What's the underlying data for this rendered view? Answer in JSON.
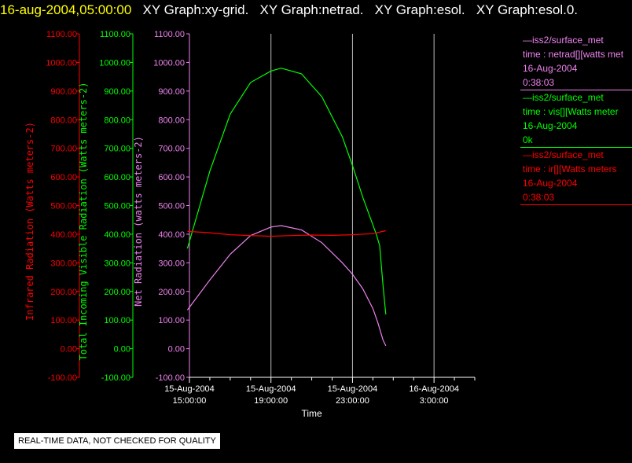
{
  "header": {
    "timestamp": "16-aug-2004,05:00:00",
    "graphs": [
      "XY Graph:xy-grid.",
      "XY Graph:netrad.",
      "XY Graph:esol.",
      "XY Graph:esol.0."
    ]
  },
  "legend": [
    {
      "source": "—iss2/surface_met",
      "field": "time : netrad[][watts met",
      "date": "16-Aug-2004",
      "time": "0:38:03",
      "color": "#ee82ee"
    },
    {
      "source": "—iss2/surface_met",
      "field": "time : vis[][Watts meter",
      "date": "16-Aug-2004",
      "time": "0k",
      "color": "#00ff00"
    },
    {
      "source": "—iss2/surface_met",
      "field": "time : ir[][Watts meters",
      "date": "16-Aug-2004",
      "time": "0:38:03",
      "color": "#ff0000"
    }
  ],
  "footer_note": "REAL-TIME DATA, NOT CHECKED FOR QUALITY",
  "chart_data": {
    "type": "line",
    "xlabel": "Time",
    "x_ticks": [
      {
        "date": "15-Aug-2004",
        "time": "15:00:00",
        "hour": 15
      },
      {
        "date": "15-Aug-2004",
        "time": "19:00:00",
        "hour": 19
      },
      {
        "date": "15-Aug-2004",
        "time": "23:00:00",
        "hour": 23
      },
      {
        "date": "16-Aug-2004",
        "time": "3:00:00",
        "hour": 27
      }
    ],
    "x_range": [
      "15-Aug-2004 15:00",
      "16-Aug-2004 5:00"
    ],
    "grid": "vertical",
    "y_axes": [
      {
        "label": "Infrared Radiation (Watts meters-2)",
        "color": "#ff0000",
        "ylim": [
          -100,
          1100
        ],
        "ticks": [
          "1100.00",
          "1000.00",
          "900.00",
          "800.00",
          "700.00",
          "600.00",
          "500.00",
          "400.00",
          "300.00",
          "200.00",
          "100.00",
          "0.00",
          "-100.00"
        ]
      },
      {
        "label": "Total Incoming Visible Radiation (Watts meters-2)",
        "color": "#00ff00",
        "ylim": [
          -100,
          1100
        ],
        "ticks": [
          "1100.00",
          "1000.00",
          "900.00",
          "800.00",
          "700.00",
          "600.00",
          "500.00",
          "400.00",
          "300.00",
          "200.00",
          "100.00",
          "0.00",
          "-100.00"
        ]
      },
      {
        "label": "Net Radiation (watts meters-2)",
        "color": "#ee82ee",
        "ylim": [
          -100,
          1100
        ],
        "ticks": [
          "1100.00",
          "1000.00",
          "900.00",
          "800.00",
          "700.00",
          "600.00",
          "500.00",
          "400.00",
          "300.00",
          "200.00",
          "100.00",
          "0.00",
          "-100.00"
        ]
      }
    ],
    "series": [
      {
        "name": "time : vis[][Watts meter",
        "color": "#00ff00",
        "x": [
          "15-Aug-2004 14:54",
          "15-Aug-2004 16:00",
          "15-Aug-2004 17:00",
          "15-Aug-2004 18:00",
          "15-Aug-2004 19:00",
          "15-Aug-2004 19:30",
          "15-Aug-2004 20:30",
          "15-Aug-2004 21:30",
          "15-Aug-2004 22:30",
          "15-Aug-2004 23:00",
          "15-Aug-2004 23:30",
          "16-Aug-2004 0:10",
          "16-Aug-2004 0:20",
          "16-Aug-2004 0:30",
          "16-Aug-2004 0:38"
        ],
        "y": [
          350,
          620,
          820,
          930,
          970,
          980,
          960,
          880,
          740,
          640,
          530,
          400,
          360,
          220,
          120
        ]
      },
      {
        "name": "time : netrad[][watts met",
        "color": "#ee82ee",
        "x": [
          "15-Aug-2004 14:54",
          "15-Aug-2004 16:00",
          "15-Aug-2004 17:00",
          "15-Aug-2004 18:00",
          "15-Aug-2004 19:00",
          "15-Aug-2004 19:30",
          "15-Aug-2004 20:30",
          "15-Aug-2004 21:30",
          "15-Aug-2004 22:30",
          "15-Aug-2004 23:00",
          "15-Aug-2004 23:30",
          "16-Aug-2004 0:00",
          "16-Aug-2004 0:15",
          "16-Aug-2004 0:30",
          "16-Aug-2004 0:38"
        ],
        "y": [
          135,
          240,
          330,
          395,
          425,
          430,
          415,
          370,
          300,
          260,
          210,
          140,
          90,
          30,
          10
        ]
      },
      {
        "name": "time : ir[][Watts meters",
        "color": "#ff0000",
        "x": [
          "15-Aug-2004 14:54",
          "15-Aug-2004 16:00",
          "15-Aug-2004 17:00",
          "15-Aug-2004 18:00",
          "15-Aug-2004 19:00",
          "15-Aug-2004 20:00",
          "15-Aug-2004 21:00",
          "15-Aug-2004 22:00",
          "15-Aug-2004 23:00",
          "16-Aug-2004 0:00",
          "16-Aug-2004 0:38"
        ],
        "y": [
          410,
          405,
          398,
          395,
          393,
          395,
          397,
          396,
          398,
          402,
          412
        ]
      }
    ]
  }
}
